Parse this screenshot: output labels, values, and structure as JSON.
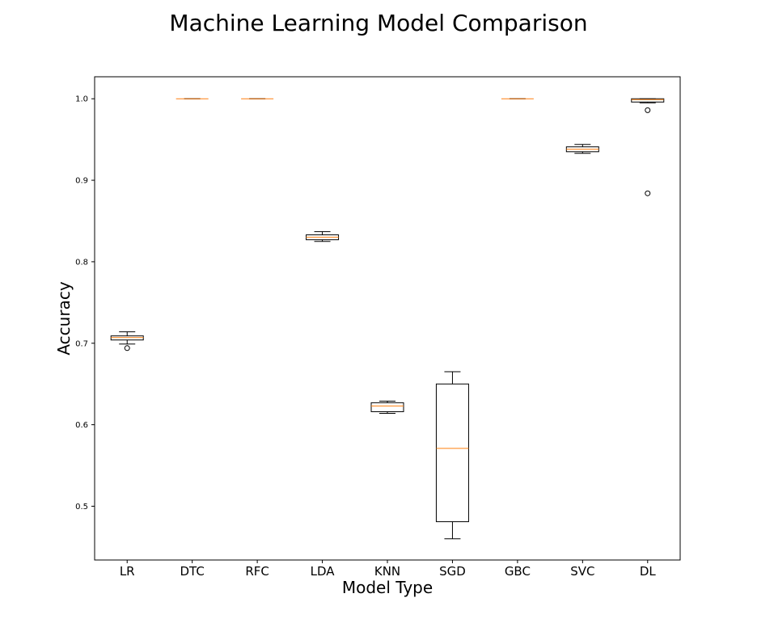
{
  "chart_data": {
    "type": "box",
    "title": "Machine Learning Model Comparison",
    "xlabel": "Model Type",
    "ylabel": "Accuracy",
    "ylim": [
      0.434,
      1.027
    ],
    "yticks": [
      "0.5",
      "0.6",
      "0.7",
      "0.8",
      "0.9",
      "1.0"
    ],
    "grid": false,
    "colors": {
      "box": "#000000",
      "median": "#ff7f0e",
      "flier": "#000000"
    },
    "categories": [
      "LR",
      "DTC",
      "RFC",
      "LDA",
      "KNN",
      "SGD",
      "GBC",
      "SVC",
      "DL"
    ],
    "boxes": [
      {
        "label": "LR",
        "whislo": 0.699,
        "q1": 0.704,
        "med": 0.707,
        "q3": 0.709,
        "whishi": 0.714,
        "fliers": [
          0.694
        ]
      },
      {
        "label": "DTC",
        "whislo": 1.0,
        "q1": 1.0,
        "med": 1.0,
        "q3": 1.0,
        "whishi": 1.0,
        "fliers": []
      },
      {
        "label": "RFC",
        "whislo": 1.0,
        "q1": 1.0,
        "med": 1.0,
        "q3": 1.0,
        "whishi": 1.0,
        "fliers": []
      },
      {
        "label": "LDA",
        "whislo": 0.825,
        "q1": 0.827,
        "med": 0.83,
        "q3": 0.833,
        "whishi": 0.837,
        "fliers": []
      },
      {
        "label": "KNN",
        "whislo": 0.614,
        "q1": 0.616,
        "med": 0.623,
        "q3": 0.627,
        "whishi": 0.629,
        "fliers": []
      },
      {
        "label": "SGD",
        "whislo": 0.46,
        "q1": 0.481,
        "med": 0.571,
        "q3": 0.65,
        "whishi": 0.665,
        "fliers": []
      },
      {
        "label": "GBC",
        "whislo": 1.0,
        "q1": 1.0,
        "med": 1.0,
        "q3": 1.0,
        "whishi": 1.0,
        "fliers": []
      },
      {
        "label": "SVC",
        "whislo": 0.933,
        "q1": 0.935,
        "med": 0.938,
        "q3": 0.941,
        "whishi": 0.944,
        "fliers": []
      },
      {
        "label": "DL",
        "whislo": 0.995,
        "q1": 0.996,
        "med": 0.999,
        "q3": 1.0,
        "whishi": 1.0,
        "fliers": [
          0.986,
          0.884
        ]
      }
    ]
  }
}
